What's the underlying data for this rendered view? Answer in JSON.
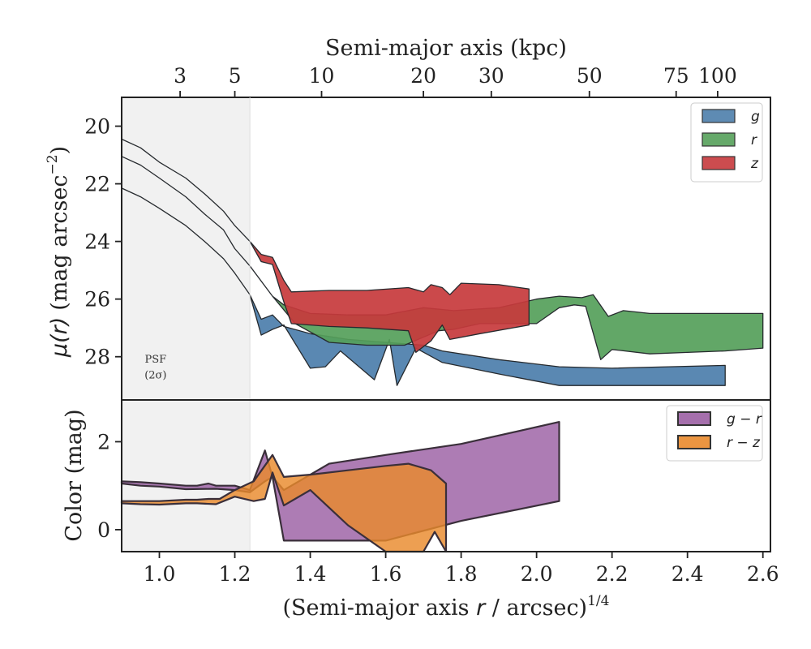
{
  "chart_data": [
    {
      "type": "area",
      "panel": "surface-brightness",
      "ylabel_html": "μ(r) (mag arcsec⁻²)",
      "ylabel_main": "(mag arcsec",
      "ylabel_exp": "−2",
      "ylabel_mu": "μ",
      "ylabel_r": "(r)",
      "top_xlabel": "Semi-major axis (kpc)",
      "top_ticks": [
        {
          "label": "3",
          "x": 1.055
        },
        {
          "label": "5",
          "x": 1.2
        },
        {
          "label": "10",
          "x": 1.43
        },
        {
          "label": "20",
          "x": 1.7
        },
        {
          "label": "30",
          "x": 1.88
        },
        {
          "label": "50",
          "x": 2.14
        },
        {
          "label": "75",
          "x": 2.37
        },
        {
          "label": "100",
          "x": 2.48
        }
      ],
      "xlim": [
        0.9,
        2.62
      ],
      "ylim": [
        29.5,
        19.0
      ],
      "y_inverted": true,
      "yticks": [
        20,
        22,
        24,
        26,
        28
      ],
      "psf_shade_end": 1.24,
      "psf_label": "PSF",
      "psf_sublabel": "(2σ)",
      "legend": {
        "placement": "top-right",
        "entries": [
          "g",
          "r",
          "z"
        ]
      },
      "series": [
        {
          "name": "g",
          "color": "#4c7eab",
          "upper": [
            [
              0.9,
              22.15
            ],
            [
              0.95,
              22.45
            ],
            [
              1.0,
              22.85
            ],
            [
              1.07,
              23.45
            ],
            [
              1.12,
              24.0
            ],
            [
              1.17,
              24.6
            ],
            [
              1.2,
              25.1
            ],
            [
              1.24,
              25.85
            ],
            [
              1.27,
              26.7
            ],
            [
              1.3,
              26.55
            ],
            [
              1.33,
              26.95
            ],
            [
              1.4,
              27.2
            ],
            [
              1.5,
              27.4
            ],
            [
              1.6,
              27.5
            ],
            [
              1.7,
              27.6
            ],
            [
              1.75,
              27.8
            ],
            [
              1.9,
              28.1
            ],
            [
              2.06,
              28.35
            ],
            [
              2.2,
              28.4
            ],
            [
              2.35,
              28.35
            ],
            [
              2.5,
              28.3
            ]
          ],
          "lower": [
            [
              0.9,
              22.15
            ],
            [
              0.95,
              22.45
            ],
            [
              1.0,
              22.85
            ],
            [
              1.07,
              23.45
            ],
            [
              1.12,
              24.0
            ],
            [
              1.17,
              24.6
            ],
            [
              1.2,
              25.1
            ],
            [
              1.24,
              25.85
            ],
            [
              1.27,
              27.25
            ],
            [
              1.3,
              27.05
            ],
            [
              1.33,
              26.9
            ],
            [
              1.4,
              28.4
            ],
            [
              1.44,
              28.35
            ],
            [
              1.48,
              27.8
            ],
            [
              1.57,
              28.8
            ],
            [
              1.61,
              27.4
            ],
            [
              1.63,
              29.0
            ],
            [
              1.68,
              27.7
            ],
            [
              1.75,
              28.2
            ],
            [
              1.9,
              28.6
            ],
            [
              2.06,
              29.0
            ],
            [
              2.2,
              29.0
            ],
            [
              2.35,
              29.0
            ],
            [
              2.5,
              29.0
            ]
          ]
        },
        {
          "name": "r",
          "color": "#55a05a",
          "upper": [
            [
              0.9,
              21.05
            ],
            [
              0.95,
              21.35
            ],
            [
              1.0,
              21.8
            ],
            [
              1.07,
              22.45
            ],
            [
              1.12,
              23.05
            ],
            [
              1.17,
              23.6
            ],
            [
              1.2,
              24.25
            ],
            [
              1.24,
              24.85
            ],
            [
              1.3,
              25.9
            ],
            [
              1.33,
              26.2
            ],
            [
              1.4,
              26.5
            ],
            [
              1.5,
              26.55
            ],
            [
              1.6,
              26.55
            ],
            [
              1.7,
              26.3
            ],
            [
              1.78,
              26.4
            ],
            [
              1.9,
              26.3
            ],
            [
              2.0,
              26.0
            ],
            [
              2.06,
              25.9
            ],
            [
              2.12,
              25.95
            ],
            [
              2.15,
              25.85
            ],
            [
              2.19,
              26.6
            ],
            [
              2.23,
              26.4
            ],
            [
              2.3,
              26.5
            ],
            [
              2.4,
              26.5
            ],
            [
              2.5,
              26.5
            ],
            [
              2.6,
              26.5
            ]
          ],
          "lower": [
            [
              0.9,
              21.05
            ],
            [
              0.95,
              21.35
            ],
            [
              1.0,
              21.8
            ],
            [
              1.07,
              22.45
            ],
            [
              1.12,
              23.05
            ],
            [
              1.17,
              23.6
            ],
            [
              1.2,
              24.25
            ],
            [
              1.24,
              24.85
            ],
            [
              1.3,
              25.9
            ],
            [
              1.36,
              26.85
            ],
            [
              1.45,
              27.5
            ],
            [
              1.55,
              27.6
            ],
            [
              1.65,
              27.6
            ],
            [
              1.74,
              27.1
            ],
            [
              1.78,
              27.05
            ],
            [
              1.85,
              26.85
            ],
            [
              2.0,
              26.85
            ],
            [
              2.06,
              26.3
            ],
            [
              2.1,
              26.2
            ],
            [
              2.13,
              26.25
            ],
            [
              2.17,
              28.1
            ],
            [
              2.2,
              27.75
            ],
            [
              2.3,
              27.9
            ],
            [
              2.4,
              27.85
            ],
            [
              2.5,
              27.8
            ],
            [
              2.6,
              27.7
            ]
          ]
        },
        {
          "name": "z",
          "color": "#c7393c",
          "upper": [
            [
              0.9,
              20.45
            ],
            [
              0.95,
              20.75
            ],
            [
              1.0,
              21.25
            ],
            [
              1.07,
              21.8
            ],
            [
              1.12,
              22.35
            ],
            [
              1.17,
              22.95
            ],
            [
              1.2,
              23.45
            ],
            [
              1.24,
              24.0
            ],
            [
              1.27,
              24.45
            ],
            [
              1.3,
              24.55
            ],
            [
              1.33,
              25.35
            ],
            [
              1.35,
              25.75
            ],
            [
              1.45,
              25.7
            ],
            [
              1.55,
              25.7
            ],
            [
              1.66,
              25.6
            ],
            [
              1.7,
              25.75
            ],
            [
              1.72,
              25.5
            ],
            [
              1.75,
              25.6
            ],
            [
              1.77,
              25.85
            ],
            [
              1.8,
              25.45
            ],
            [
              1.9,
              25.5
            ],
            [
              1.98,
              25.65
            ]
          ],
          "lower": [
            [
              0.9,
              20.45
            ],
            [
              0.95,
              20.75
            ],
            [
              1.0,
              21.25
            ],
            [
              1.07,
              21.8
            ],
            [
              1.12,
              22.35
            ],
            [
              1.17,
              22.95
            ],
            [
              1.2,
              23.45
            ],
            [
              1.24,
              24.0
            ],
            [
              1.27,
              24.7
            ],
            [
              1.3,
              24.8
            ],
            [
              1.33,
              26.1
            ],
            [
              1.35,
              26.85
            ],
            [
              1.45,
              26.95
            ],
            [
              1.55,
              27.0
            ],
            [
              1.66,
              27.1
            ],
            [
              1.68,
              27.85
            ],
            [
              1.72,
              27.45
            ],
            [
              1.75,
              26.9
            ],
            [
              1.77,
              27.4
            ],
            [
              1.85,
              27.2
            ],
            [
              1.98,
              26.9
            ]
          ]
        }
      ]
    },
    {
      "type": "area",
      "panel": "color",
      "ylabel": "Color (mag)",
      "xlabel_pre": "(Semi-major axis ",
      "xlabel_r": "r",
      "xlabel_post": " / arcsec)",
      "xlabel_exp": "1/4",
      "xlim": [
        0.9,
        2.62
      ],
      "ylim": [
        -0.5,
        2.95
      ],
      "yticks": [
        0,
        2
      ],
      "xticks": [
        1.0,
        1.2,
        1.4,
        1.6,
        1.8,
        2.0,
        2.2,
        2.4,
        2.6
      ],
      "xtick_labels": [
        "1.0",
        "1.2",
        "1.4",
        "1.6",
        "1.8",
        "2.0",
        "2.2",
        "2.4",
        "2.6"
      ],
      "legend": {
        "placement": "top-right",
        "entries": [
          "g − r",
          "r − z"
        ]
      },
      "series": [
        {
          "name": "g − r",
          "color": "#9b5fa3",
          "upper": [
            [
              0.9,
              1.1
            ],
            [
              0.95,
              1.08
            ],
            [
              1.0,
              1.05
            ],
            [
              1.07,
              1.0
            ],
            [
              1.1,
              1.0
            ],
            [
              1.13,
              1.05
            ],
            [
              1.15,
              1.0
            ],
            [
              1.2,
              1.0
            ],
            [
              1.24,
              0.9
            ],
            [
              1.28,
              1.8
            ],
            [
              1.3,
              1.2
            ],
            [
              1.33,
              0.9
            ],
            [
              1.45,
              1.5
            ],
            [
              1.6,
              1.7
            ],
            [
              1.8,
              1.95
            ],
            [
              2.06,
              2.45
            ]
          ],
          "lower": [
            [
              0.9,
              1.05
            ],
            [
              0.95,
              1.0
            ],
            [
              1.0,
              0.98
            ],
            [
              1.07,
              0.92
            ],
            [
              1.15,
              0.93
            ],
            [
              1.2,
              0.9
            ],
            [
              1.24,
              0.85
            ],
            [
              1.28,
              1.1
            ],
            [
              1.3,
              1.2
            ],
            [
              1.33,
              -0.25
            ],
            [
              1.45,
              -0.25
            ],
            [
              1.6,
              -0.25
            ],
            [
              1.8,
              0.2
            ],
            [
              2.06,
              0.65
            ]
          ]
        },
        {
          "name": "r − z",
          "color": "#e98a2c",
          "upper": [
            [
              0.9,
              0.65
            ],
            [
              0.95,
              0.65
            ],
            [
              1.0,
              0.65
            ],
            [
              1.07,
              0.68
            ],
            [
              1.1,
              0.68
            ],
            [
              1.13,
              0.7
            ],
            [
              1.16,
              0.7
            ],
            [
              1.2,
              0.9
            ],
            [
              1.25,
              1.1
            ],
            [
              1.3,
              1.7
            ],
            [
              1.33,
              1.2
            ],
            [
              1.4,
              1.25
            ],
            [
              1.5,
              1.35
            ],
            [
              1.6,
              1.45
            ],
            [
              1.66,
              1.5
            ],
            [
              1.72,
              1.35
            ],
            [
              1.76,
              1.05
            ],
            [
              1.76,
              -0.5
            ]
          ],
          "lower": [
            [
              0.9,
              0.6
            ],
            [
              0.95,
              0.58
            ],
            [
              1.0,
              0.57
            ],
            [
              1.07,
              0.6
            ],
            [
              1.1,
              0.6
            ],
            [
              1.15,
              0.58
            ],
            [
              1.2,
              0.75
            ],
            [
              1.25,
              0.65
            ],
            [
              1.28,
              0.7
            ],
            [
              1.3,
              1.3
            ],
            [
              1.33,
              0.55
            ],
            [
              1.4,
              0.9
            ],
            [
              1.5,
              0.1
            ],
            [
              1.6,
              -0.5
            ],
            [
              1.7,
              -0.5
            ],
            [
              1.73,
              -0.05
            ],
            [
              1.76,
              -0.5
            ]
          ]
        }
      ]
    }
  ]
}
